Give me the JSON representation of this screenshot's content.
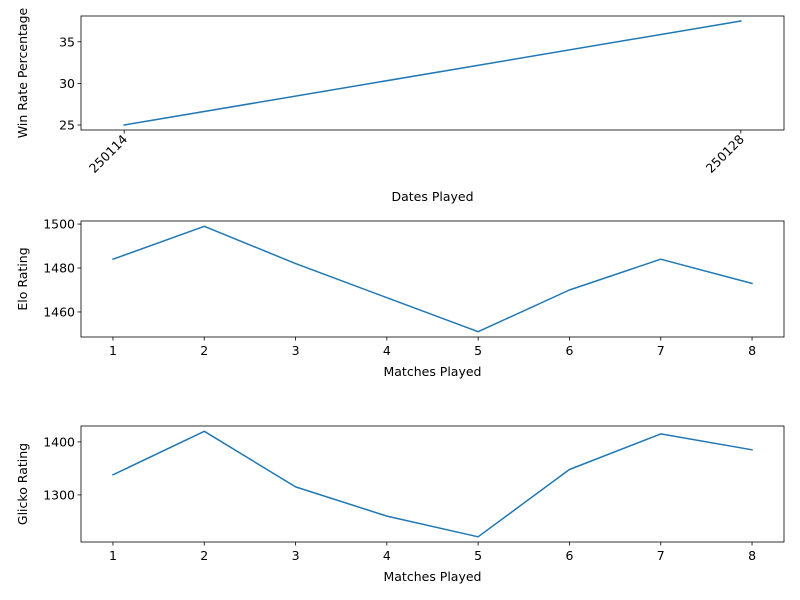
{
  "line_color": "#1f77b4",
  "chart_data": [
    {
      "type": "line",
      "title": "",
      "xlabel": "Dates Played",
      "ylabel": "Win Rate Percentage",
      "x_type": "category",
      "categories": [
        "250114",
        "250128"
      ],
      "values": [
        25.0,
        37.5
      ],
      "xlim": [
        -0.07,
        1.07
      ],
      "ylim": [
        24.4,
        38.1
      ],
      "yticks": [
        25,
        30,
        35
      ],
      "x_tick_rotation": 45,
      "grid": false,
      "legend": "none"
    },
    {
      "type": "line",
      "title": "",
      "xlabel": "Matches Played",
      "ylabel": "Elo Rating",
      "x_type": "numeric",
      "x": [
        1,
        2,
        3,
        4,
        5,
        6,
        7,
        8
      ],
      "values": [
        1484,
        1499,
        1482,
        1466.5,
        1451,
        1470,
        1484,
        1473
      ],
      "xlim": [
        0.65,
        8.35
      ],
      "ylim": [
        1448.6,
        1501.4
      ],
      "xticks": [
        1,
        2,
        3,
        4,
        5,
        6,
        7,
        8
      ],
      "yticks": [
        1460,
        1480,
        1500
      ],
      "grid": false,
      "legend": "none"
    },
    {
      "type": "line",
      "title": "",
      "xlabel": "Matches Played",
      "ylabel": "Glicko Rating",
      "x_type": "numeric",
      "x": [
        1,
        2,
        3,
        4,
        5,
        6,
        7,
        8
      ],
      "values": [
        1338,
        1420,
        1315,
        1260,
        1221,
        1348,
        1415,
        1385
      ],
      "xlim": [
        0.65,
        8.35
      ],
      "ylim": [
        1211.1,
        1430.0
      ],
      "xticks": [
        1,
        2,
        3,
        4,
        5,
        6,
        7,
        8
      ],
      "yticks": [
        1300,
        1400
      ],
      "grid": false,
      "legend": "none"
    }
  ]
}
